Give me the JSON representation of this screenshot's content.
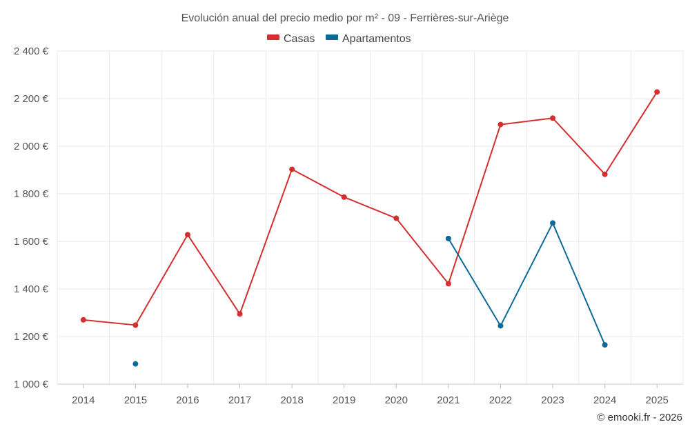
{
  "chart_data": {
    "type": "line",
    "title": "Evolución anual del precio medio por m² - 09 - Ferrières-sur-Ariège",
    "categories": [
      "2014",
      "2015",
      "2016",
      "2017",
      "2018",
      "2019",
      "2020",
      "2021",
      "2022",
      "2023",
      "2024",
      "2025"
    ],
    "series": [
      {
        "name": "Casas",
        "color": "#d32f2f",
        "values": [
          1270,
          1248,
          1628,
          1295,
          1903,
          1786,
          1697,
          1422,
          2091,
          2118,
          1882,
          2228
        ]
      },
      {
        "name": "Apartamentos",
        "color": "#0b6a9a",
        "values": [
          null,
          1085,
          null,
          null,
          null,
          null,
          null,
          1612,
          1245,
          1677,
          1165,
          null
        ]
      }
    ],
    "y_ticks": [
      1000,
      1200,
      1400,
      1600,
      1800,
      2000,
      2200,
      2400
    ],
    "y_tick_labels": [
      "1 000 €",
      "1 200 €",
      "1 400 €",
      "1 600 €",
      "1 800 €",
      "2 000 €",
      "2 200 €",
      "2 400 €"
    ],
    "ylim": [
      1000,
      2400
    ],
    "xlabel": "",
    "ylabel": "",
    "legend": "top-center",
    "grid": true,
    "credit": "© emooki.fr - 2026"
  }
}
